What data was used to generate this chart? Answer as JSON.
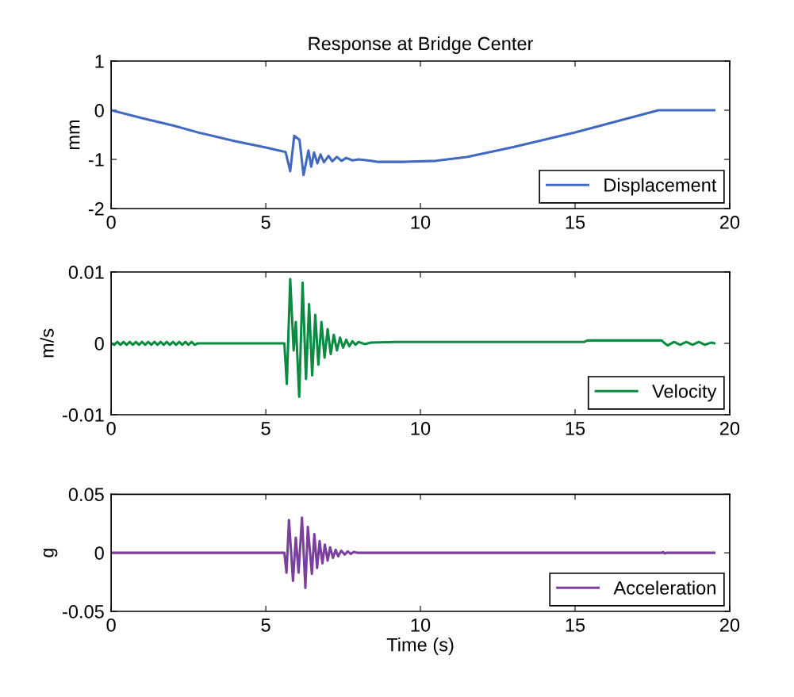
{
  "chart_data": [
    {
      "type": "line",
      "title": "Response at Bridge Center",
      "ylabel": "mm",
      "xlim": [
        0,
        20
      ],
      "xticks": [
        0,
        5,
        10,
        15,
        20
      ],
      "ylim": [
        -2,
        1
      ],
      "yticks": [
        -2,
        -1,
        0,
        1
      ],
      "legend": "bottom right",
      "grid": false,
      "series": [
        {
          "name": "Displacement",
          "color": "#4169c1",
          "x": [
            0,
            1,
            2,
            2.8,
            4,
            5,
            5.64,
            5.79,
            5.92,
            6.09,
            6.22,
            6.38,
            6.47,
            6.56,
            6.67,
            6.77,
            6.88,
            7.03,
            7.15,
            7.3,
            7.45,
            7.6,
            7.8,
            8.0,
            8.4,
            8.6,
            9.5,
            10.5,
            11.5,
            13,
            15,
            17.7,
            19.5
          ],
          "values": [
            0,
            -0.16,
            -0.31,
            -0.45,
            -0.63,
            -0.76,
            -0.85,
            -1.24,
            -0.52,
            -0.6,
            -1.32,
            -0.82,
            -1.15,
            -0.86,
            -1.08,
            -0.9,
            -1.06,
            -0.93,
            -1.04,
            -0.95,
            -1.03,
            -0.97,
            -1.02,
            -1.0,
            -1.03,
            -1.05,
            -1.05,
            -1.03,
            -0.95,
            -0.75,
            -0.45,
            0,
            0
          ]
        }
      ]
    },
    {
      "type": "line",
      "ylabel": "m/s",
      "xlim": [
        0,
        20
      ],
      "xticks": [
        0,
        5,
        10,
        15,
        20
      ],
      "ylim": [
        -0.01,
        0.01
      ],
      "yticks": [
        -0.01,
        0,
        0.01
      ],
      "legend": "bottom right",
      "grid": false,
      "series": [
        {
          "name": "Velocity",
          "color": "#0b8a42",
          "x": [
            0,
            0.1,
            0.2,
            0.3,
            0.4,
            0.5,
            0.6,
            0.7,
            0.8,
            0.9,
            1.0,
            1.1,
            1.2,
            1.3,
            1.4,
            1.5,
            1.6,
            1.7,
            1.8,
            1.9,
            2.0,
            2.1,
            2.2,
            2.3,
            2.4,
            2.5,
            2.6,
            2.7,
            2.8,
            5.6,
            5.68,
            5.79,
            5.9,
            5.97,
            6.08,
            6.19,
            6.3,
            6.4,
            6.5,
            6.6,
            6.7,
            6.8,
            6.9,
            7.0,
            7.1,
            7.2,
            7.3,
            7.4,
            7.5,
            7.6,
            7.7,
            7.8,
            7.9,
            8.0,
            8.2,
            8.4,
            9.2,
            15.3,
            15.4,
            17.8,
            17.9,
            18.0,
            18.2,
            18.4,
            18.6,
            18.8,
            19.0,
            19.2,
            19.4,
            19.5
          ],
          "values": [
            0,
            -0.0002,
            0.0002,
            -0.0002,
            0.0002,
            -0.0002,
            0.0002,
            -0.0002,
            0.0002,
            -0.0002,
            0.0002,
            -0.0002,
            0.0002,
            -0.0002,
            0.0002,
            -0.0002,
            0.0002,
            -0.0002,
            0.0002,
            -0.0002,
            0.0002,
            -0.0002,
            0.0002,
            -0.0002,
            0.0002,
            -0.0002,
            0.0002,
            -0.0002,
            0,
            0,
            -0.0057,
            0.009,
            -0.001,
            0.003,
            -0.0075,
            0.0085,
            -0.005,
            0.0055,
            -0.0045,
            0.004,
            -0.003,
            0.003,
            -0.002,
            0.002,
            -0.0015,
            0.0012,
            -0.001,
            0.0008,
            -0.0006,
            0.0005,
            -0.0004,
            0.0003,
            -0.0002,
            0.0002,
            -0.0001,
            0.0001,
            0.0002,
            0.0002,
            0.0004,
            0.0004,
            0,
            -0.0003,
            0.0002,
            -0.0002,
            0.0002,
            -0.0002,
            0.0002,
            -0.0002,
            0.0001,
            0
          ]
        }
      ]
    },
    {
      "type": "line",
      "ylabel": "g",
      "xlabel": "Time (s)",
      "xlim": [
        0,
        20
      ],
      "xticks": [
        0,
        5,
        10,
        15,
        20
      ],
      "ylim": [
        -0.05,
        0.05
      ],
      "yticks": [
        -0.05,
        0,
        0.05
      ],
      "legend": "bottom right",
      "grid": false,
      "series": [
        {
          "name": "Acceleration",
          "color": "#7b3f9c",
          "x": [
            0,
            5.6,
            5.67,
            5.75,
            5.88,
            5.97,
            6.06,
            6.17,
            6.28,
            6.36,
            6.49,
            6.57,
            6.66,
            6.74,
            6.83,
            6.91,
            7.0,
            7.08,
            7.17,
            7.26,
            7.34,
            7.44,
            7.55,
            7.65,
            7.75,
            7.85,
            7.95,
            17.8,
            17.85,
            17.9,
            17.95,
            19.5
          ],
          "values": [
            0,
            0,
            -0.017,
            0.028,
            -0.024,
            0.013,
            -0.017,
            0.03,
            -0.03,
            0.022,
            -0.018,
            0.016,
            -0.013,
            0.01,
            -0.009,
            0.007,
            -0.0066,
            0.0047,
            -0.0043,
            0.0025,
            -0.003,
            0.0018,
            -0.0015,
            0.0012,
            -0.001,
            0.0008,
            0,
            0,
            0.0006,
            -0.0006,
            0,
            0
          ]
        }
      ]
    }
  ]
}
